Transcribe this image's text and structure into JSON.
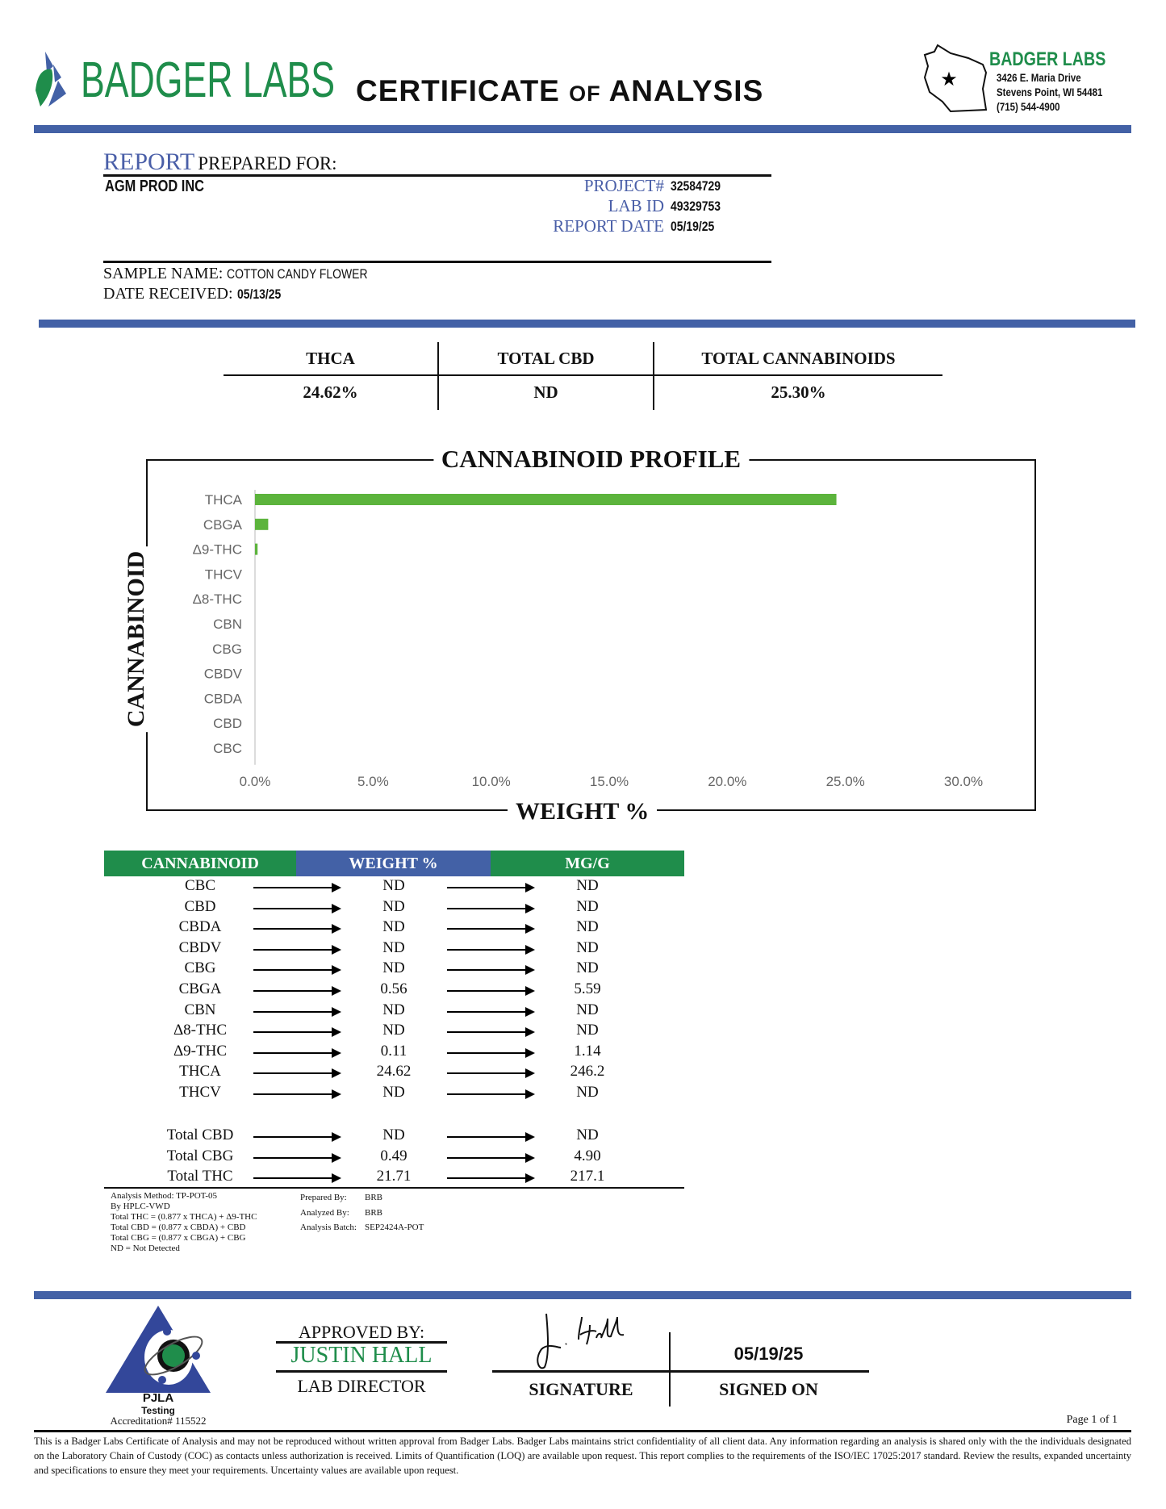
{
  "header": {
    "logo_text": "BADGER LABS",
    "title_part1": "CERTIFICATE",
    "title_part2": "OF",
    "title_part3": "ANALYSIS",
    "address": {
      "name": "BADGER LABS",
      "street": "3426 E. Maria Drive",
      "city": "Stevens Point, WI 54481",
      "phone": "(715) 544-4900"
    }
  },
  "report": {
    "label_report": "REPORT",
    "label_prepared": "PREPARED FOR:",
    "client": "AGM PROD INC",
    "project_label": "PROJECT#",
    "project": "32584729",
    "labid_label": "LAB ID",
    "labid": "49329753",
    "date_label": "REPORT DATE",
    "date": "05/19/25",
    "sample_label": "SAMPLE NAME:",
    "sample": "COTTON CANDY FLOWER",
    "received_label": "DATE RECEIVED:",
    "received": "05/13/25"
  },
  "summary": [
    {
      "label": "THCA",
      "value": "24.62%"
    },
    {
      "label": "TOTAL CBD",
      "value": "ND"
    },
    {
      "label": "TOTAL CANNABINOIDS",
      "value": "25.30%"
    }
  ],
  "chart_data": {
    "type": "bar",
    "orientation": "horizontal",
    "title": "CANNABINOID PROFILE",
    "xlabel": "WEIGHT %",
    "ylabel": "CANNABINOID",
    "categories": [
      "THCA",
      "CBGA",
      "Δ9-THC",
      "THCV",
      "Δ8-THC",
      "CBN",
      "CBG",
      "CBDV",
      "CBDA",
      "CBD",
      "CBC"
    ],
    "values": [
      24.62,
      0.56,
      0.11,
      0,
      0,
      0,
      0,
      0,
      0,
      0,
      0
    ],
    "xlim": [
      0,
      30
    ],
    "xticks": [
      "0.0%",
      "5.0%",
      "10.0%",
      "15.0%",
      "20.0%",
      "25.0%",
      "30.0%"
    ],
    "grid": false,
    "bar_color": "#5cb43c"
  },
  "table": {
    "headers": [
      "CANNABINOID",
      "WEIGHT %",
      "MG/G"
    ],
    "header_colors": [
      "#1f8d4b",
      "#4361a6",
      "#1f8d4b"
    ],
    "rows": [
      [
        "CBC",
        "ND",
        "ND"
      ],
      [
        "CBD",
        "ND",
        "ND"
      ],
      [
        "CBDA",
        "ND",
        "ND"
      ],
      [
        "CBDV",
        "ND",
        "ND"
      ],
      [
        "CBG",
        "ND",
        "ND"
      ],
      [
        "CBGA",
        "0.56",
        "5.59"
      ],
      [
        "CBN",
        "ND",
        "ND"
      ],
      [
        "Δ8-THC",
        "ND",
        "ND"
      ],
      [
        "Δ9-THC",
        "0.11",
        "1.14"
      ],
      [
        "THCA",
        "24.62",
        "246.2"
      ],
      [
        "THCV",
        "ND",
        "ND"
      ]
    ],
    "totals": [
      [
        "Total CBD",
        "ND",
        "ND"
      ],
      [
        "Total CBG",
        "0.49",
        "4.90"
      ],
      [
        "Total THC",
        "21.71",
        "217.1"
      ]
    ]
  },
  "notes": {
    "method": [
      "Analysis Method: TP-POT-05",
      "By HPLC-VWD",
      "Total THC = (0.877 x  THCA) + Δ9-THC",
      "Total CBD = (0.877 x  CBDA) + CBD",
      "Total CBG = (0.877 x  CBGA) + CBG",
      "ND = Not Detected"
    ],
    "staff": [
      [
        "Prepared By:",
        "BRB"
      ],
      [
        "Analyzed By:",
        "BRB"
      ],
      [
        "Analysis Batch:",
        "SEP2424A-POT"
      ]
    ]
  },
  "footer": {
    "pjla": "PJLA",
    "testing": "Testing",
    "accreditation": "Accreditation# 115522",
    "approved_by": "APPROVED BY:",
    "approver": "JUSTIN HALL",
    "approver_title": "LAB DIRECTOR",
    "signature_label": "SIGNATURE",
    "signed_on_label": "SIGNED ON",
    "signed_date": "05/19/25",
    "page": "Page 1 of 1",
    "disclaimer": "This is a Badger Labs Certificate of Analysis and may not be reproduced without written approval from Badger Labs. Badger Labs maintains strict confidentiality of all client data. Any information regarding an analysis is shared only with the the individuals designated on the Laboratory Chain of Custody (COC) as contacts unless authorization is received. Limits of Quantification (LOQ) are available upon request. This report complies to the requirements of the ISO/IEC 17025:2017 standard. Review the results, expanded uncertainty and specifications to ensure they meet your requirements. Uncertainty values are available upon request."
  }
}
